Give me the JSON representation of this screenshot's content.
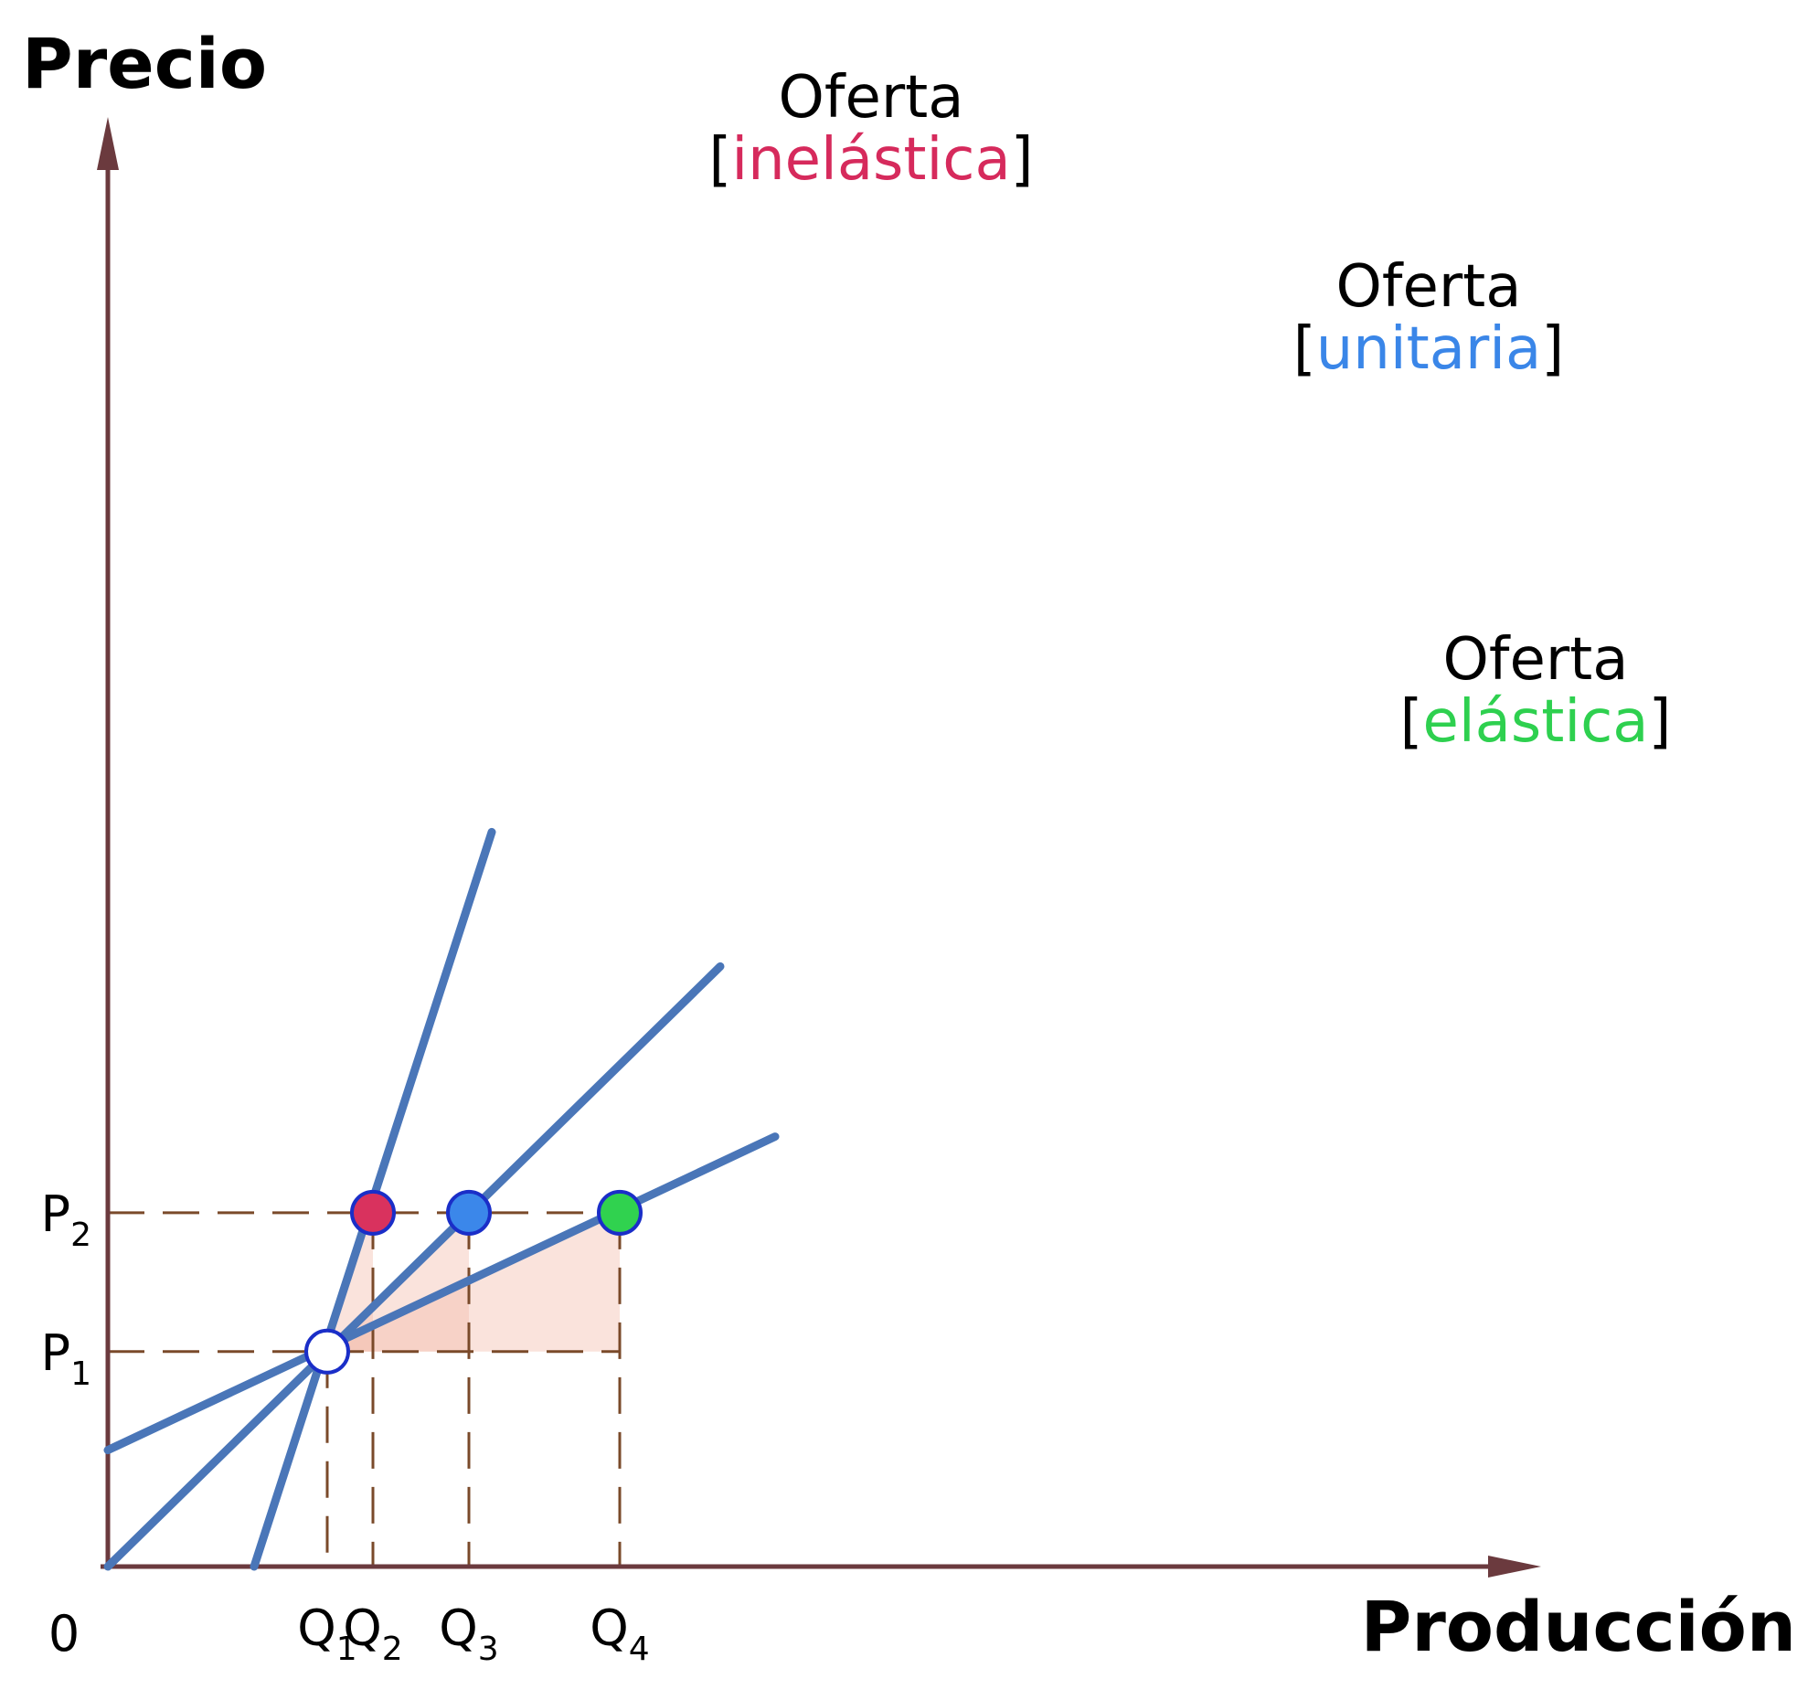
{
  "chart_data": {
    "type": "line",
    "xlabel": "Producción",
    "ylabel": "Precio",
    "origin_label": "0",
    "xlim": [
      0,
      10
    ],
    "ylim": [
      0,
      10
    ],
    "x_ticks": [
      {
        "id": "q1",
        "label": "Q",
        "sub": "1",
        "value": 2.4
      },
      {
        "id": "q2",
        "label": "Q",
        "sub": "2",
        "value": 2.9
      },
      {
        "id": "q3",
        "label": "Q",
        "sub": "3",
        "value": 3.95
      },
      {
        "id": "q4",
        "label": "Q",
        "sub": "4",
        "value": 5.6
      }
    ],
    "y_ticks": [
      {
        "id": "p1",
        "label": "P",
        "sub": "1",
        "value": 2.4
      },
      {
        "id": "p2",
        "label": "P",
        "sub": "2",
        "value": 3.95
      }
    ],
    "series": [
      {
        "id": "inelastica",
        "name_line1": "Oferta",
        "name_type": "inelástica",
        "color": "#4a76b8",
        "type_color": "#d62a5c",
        "marker_color": "#d9325e",
        "x": [
          1.6,
          4.2
        ],
        "y": [
          0.0,
          8.2
        ],
        "highlight": {
          "x": 2.9,
          "y": 3.95
        }
      },
      {
        "id": "unitaria",
        "name_line1": "Oferta",
        "name_type": "unitaria",
        "color": "#4a76b8",
        "type_color": "#3a86e8",
        "marker_color": "#3b87ea",
        "x": [
          0.0,
          6.7
        ],
        "y": [
          0.0,
          6.7
        ],
        "highlight": {
          "x": 3.95,
          "y": 3.95
        }
      },
      {
        "id": "elastica",
        "name_line1": "Oferta",
        "name_type": "elástica",
        "color": "#4a76b8",
        "type_color": "#2ed04f",
        "marker_color": "#30d24f",
        "x": [
          0.0,
          7.3
        ],
        "y": [
          1.3,
          4.8
        ],
        "highlight": {
          "x": 5.6,
          "y": 3.95
        }
      }
    ],
    "initial_point": {
      "x": 2.4,
      "y": 2.4,
      "color": "#ffffff"
    },
    "colors": {
      "axis": "#6b3a3e",
      "guides": "#7a4a2a",
      "shade": "#f2b9a8",
      "marker_stroke": "#1a2ec8"
    },
    "grid": false
  }
}
